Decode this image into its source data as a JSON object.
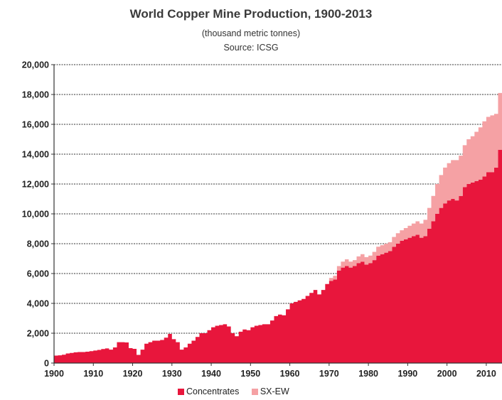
{
  "chart_data": {
    "type": "area",
    "title": "World Copper Mine Production, 1900-2013",
    "subtitle": "(thousand metric tonnes)",
    "source": "Source: ICSG",
    "xlabel": "",
    "ylabel": "",
    "xlim": [
      1900,
      2013
    ],
    "ylim": [
      0,
      20000
    ],
    "x_ticks": [
      "1900",
      "1910",
      "1920",
      "1930",
      "1940",
      "1950",
      "1960",
      "1970",
      "1980",
      "1990",
      "2000",
      "2010"
    ],
    "y_ticks": [
      "0",
      "2,000",
      "4,000",
      "6,000",
      "8,000",
      "10,000",
      "12,000",
      "14,000",
      "16,000",
      "18,000",
      "20,000"
    ],
    "grid": true,
    "legend_position": "bottom",
    "stacked": true,
    "x": [
      1900,
      1901,
      1902,
      1903,
      1904,
      1905,
      1906,
      1907,
      1908,
      1909,
      1910,
      1911,
      1912,
      1913,
      1914,
      1915,
      1916,
      1917,
      1918,
      1919,
      1920,
      1921,
      1922,
      1923,
      1924,
      1925,
      1926,
      1927,
      1928,
      1929,
      1930,
      1931,
      1932,
      1933,
      1934,
      1935,
      1936,
      1937,
      1938,
      1939,
      1940,
      1941,
      1942,
      1943,
      1944,
      1945,
      1946,
      1947,
      1948,
      1949,
      1950,
      1951,
      1952,
      1953,
      1954,
      1955,
      1956,
      1957,
      1958,
      1959,
      1960,
      1961,
      1962,
      1963,
      1964,
      1965,
      1966,
      1967,
      1968,
      1969,
      1970,
      1971,
      1972,
      1973,
      1974,
      1975,
      1976,
      1977,
      1978,
      1979,
      1980,
      1981,
      1982,
      1983,
      1984,
      1985,
      1986,
      1987,
      1988,
      1989,
      1990,
      1991,
      1992,
      1993,
      1994,
      1995,
      1996,
      1997,
      1998,
      1999,
      2000,
      2001,
      2002,
      2003,
      2004,
      2005,
      2006,
      2007,
      2008,
      2009,
      2010,
      2011,
      2012,
      2013
    ],
    "series": [
      {
        "name": "Concentrates",
        "color": "#e8163c",
        "values": [
          500,
          520,
          560,
          640,
          680,
          720,
          740,
          740,
          760,
          800,
          840,
          880,
          940,
          980,
          900,
          1050,
          1400,
          1400,
          1380,
          1000,
          950,
          550,
          900,
          1300,
          1400,
          1500,
          1500,
          1550,
          1700,
          1950,
          1600,
          1400,
          900,
          1050,
          1300,
          1500,
          1750,
          2000,
          2000,
          2200,
          2400,
          2500,
          2550,
          2600,
          2450,
          2000,
          1800,
          2100,
          2250,
          2200,
          2400,
          2500,
          2550,
          2600,
          2600,
          2850,
          3150,
          3250,
          3200,
          3600,
          4000,
          4100,
          4200,
          4300,
          4500,
          4700,
          4900,
          4600,
          4900,
          5300,
          5500,
          5600,
          6200,
          6400,
          6500,
          6400,
          6500,
          6700,
          6800,
          6600,
          6700,
          6900,
          7200,
          7300,
          7400,
          7500,
          7800,
          8000,
          8200,
          8300,
          8400,
          8500,
          8600,
          8400,
          8500,
          9000,
          9500,
          10000,
          10400,
          10700,
          10900,
          11000,
          10900,
          11200,
          11800,
          12000,
          12100,
          12200,
          12300,
          12500,
          12800,
          12800,
          13100,
          14300
        ]
      },
      {
        "name": "SX-EW",
        "color": "#f5a1a4",
        "values": [
          0,
          0,
          0,
          0,
          0,
          0,
          0,
          0,
          0,
          0,
          0,
          0,
          0,
          0,
          0,
          0,
          0,
          0,
          0,
          0,
          0,
          0,
          0,
          0,
          0,
          0,
          0,
          0,
          0,
          0,
          0,
          0,
          0,
          0,
          0,
          0,
          0,
          0,
          0,
          0,
          0,
          0,
          0,
          0,
          0,
          0,
          0,
          0,
          0,
          0,
          0,
          0,
          0,
          0,
          0,
          0,
          0,
          0,
          0,
          0,
          0,
          0,
          0,
          0,
          0,
          0,
          0,
          0,
          0,
          0,
          200,
          250,
          300,
          400,
          450,
          400,
          400,
          450,
          500,
          500,
          500,
          550,
          600,
          600,
          600,
          600,
          650,
          700,
          700,
          750,
          800,
          850,
          900,
          950,
          1100,
          1400,
          1700,
          2000,
          2200,
          2400,
          2500,
          2600,
          2700,
          2700,
          2800,
          3000,
          3100,
          3300,
          3500,
          3700,
          3700,
          3800,
          3600,
          3800
        ]
      }
    ]
  }
}
